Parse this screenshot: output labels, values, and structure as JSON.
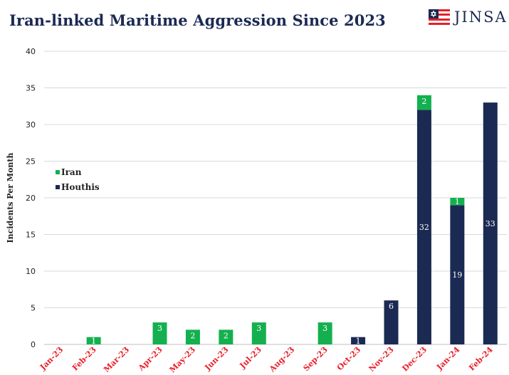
{
  "title": "Iran-linked Maritime Aggression Since 2023",
  "logo": {
    "text": "JINSA",
    "icon": "flag-star-icon"
  },
  "colors": {
    "iran": "#14b04f",
    "houthis": "#1b2a52",
    "title": "#1b2a52",
    "xtick": "#e8202a",
    "grid": "#d9d9d9"
  },
  "chart_data": {
    "type": "bar",
    "stacked": true,
    "ylabel": "Incidents Per Month",
    "ylim": [
      0,
      40
    ],
    "yticks": [
      0,
      5,
      10,
      15,
      20,
      25,
      30,
      35,
      40
    ],
    "grid": true,
    "legend_position": "left",
    "categories": [
      "Jan-23",
      "Feb-23",
      "Mar-23",
      "Apr-23",
      "May-23",
      "Jun-23",
      "Jul-23",
      "Aug-23",
      "Sep-23",
      "Oct-23",
      "Nov-23",
      "Dec-23",
      "Jan-24",
      "Feb-24"
    ],
    "series": [
      {
        "name": "Houthis",
        "color": "#1b2a52",
        "values": [
          0,
          0,
          0,
          0,
          0,
          0,
          0,
          0,
          0,
          1,
          6,
          32,
          19,
          33
        ]
      },
      {
        "name": "Iran",
        "color": "#14b04f",
        "values": [
          0,
          1,
          0,
          3,
          2,
          2,
          3,
          0,
          3,
          0,
          0,
          2,
          1,
          0
        ]
      }
    ],
    "legend_order": [
      "Iran",
      "Houthis"
    ]
  }
}
